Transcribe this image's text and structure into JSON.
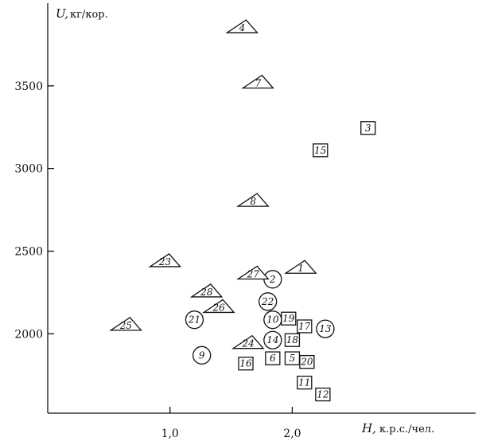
{
  "chart_data": {
    "type": "scatter",
    "title": "",
    "xlabel": "H,",
    "xunit": "к.р.с./чел.",
    "ylabel": "U,",
    "yunit": "кг/кор.",
    "xlim": [
      0.0,
      3.5
    ],
    "ylim": [
      1520,
      4000
    ],
    "xticks": [
      {
        "value": 1.0,
        "label": "1,0"
      },
      {
        "value": 2.0,
        "label": "2,0"
      }
    ],
    "yticks": [
      {
        "value": 2000,
        "label": "2000"
      },
      {
        "value": 2500,
        "label": "2500"
      },
      {
        "value": 3000,
        "label": "3000"
      },
      {
        "value": 3500,
        "label": "3500"
      }
    ],
    "grid": false,
    "legend": "none",
    "points": [
      {
        "id": "1",
        "shape": "triangle",
        "x": 2.07,
        "y": 2405
      },
      {
        "id": "2",
        "shape": "circle",
        "x": 1.84,
        "y": 2330
      },
      {
        "id": "3",
        "shape": "square",
        "x": 2.62,
        "y": 3245
      },
      {
        "id": "4",
        "shape": "triangle",
        "x": 1.59,
        "y": 3860
      },
      {
        "id": "5",
        "shape": "square",
        "x": 2.0,
        "y": 1852
      },
      {
        "id": "6",
        "shape": "square",
        "x": 1.84,
        "y": 1852
      },
      {
        "id": "7",
        "shape": "triangle",
        "x": 1.72,
        "y": 3525
      },
      {
        "id": "8",
        "shape": "triangle",
        "x": 1.68,
        "y": 2810
      },
      {
        "id": "9",
        "shape": "circle",
        "x": 1.26,
        "y": 1870
      },
      {
        "id": "10",
        "shape": "circle",
        "x": 1.84,
        "y": 2085
      },
      {
        "id": "11",
        "shape": "square",
        "x": 2.1,
        "y": 1705
      },
      {
        "id": "12",
        "shape": "square",
        "x": 2.25,
        "y": 1633
      },
      {
        "id": "13",
        "shape": "circle",
        "x": 2.27,
        "y": 2030
      },
      {
        "id": "14",
        "shape": "circle",
        "x": 1.84,
        "y": 1962
      },
      {
        "id": "15",
        "shape": "square",
        "x": 2.23,
        "y": 3110
      },
      {
        "id": "16",
        "shape": "square",
        "x": 1.62,
        "y": 1820
      },
      {
        "id": "17",
        "shape": "square",
        "x": 2.1,
        "y": 2045
      },
      {
        "id": "18",
        "shape": "square",
        "x": 2.0,
        "y": 1962
      },
      {
        "id": "19",
        "shape": "square",
        "x": 1.97,
        "y": 2092
      },
      {
        "id": "20",
        "shape": "square",
        "x": 2.12,
        "y": 1830
      },
      {
        "id": "21",
        "shape": "circle",
        "x": 1.2,
        "y": 2085
      },
      {
        "id": "22",
        "shape": "circle",
        "x": 1.8,
        "y": 2195
      },
      {
        "id": "23",
        "shape": "triangle",
        "x": 0.96,
        "y": 2445
      },
      {
        "id": "24",
        "shape": "triangle",
        "x": 1.64,
        "y": 1950
      },
      {
        "id": "25",
        "shape": "triangle",
        "x": 0.64,
        "y": 2060
      },
      {
        "id": "26",
        "shape": "triangle",
        "x": 1.4,
        "y": 2168
      },
      {
        "id": "27",
        "shape": "triangle",
        "x": 1.68,
        "y": 2370
      },
      {
        "id": "28",
        "shape": "triangle",
        "x": 1.3,
        "y": 2262
      }
    ]
  }
}
